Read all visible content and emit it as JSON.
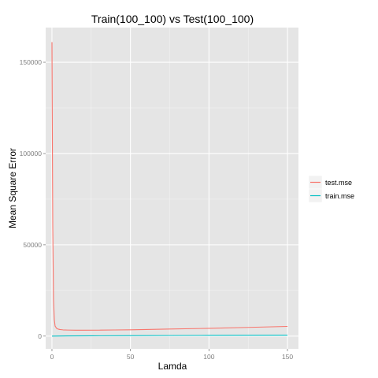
{
  "chart_data": {
    "type": "line",
    "title": "Train(100_100) vs Test(100_100)",
    "xlabel": "Lamda",
    "ylabel": "Mean Square Error",
    "xlim": [
      -4,
      157
    ],
    "ylim": [
      -7000,
      169000
    ],
    "x_ticks": [
      0,
      50,
      100,
      150
    ],
    "y_ticks": [
      0,
      50000,
      100000,
      150000
    ],
    "x_tick_labels": [
      "0",
      "50",
      "100",
      "150"
    ],
    "y_tick_labels": [
      "0",
      "50000",
      "100000",
      "150000"
    ],
    "grid": true,
    "legend_position": "right",
    "panel_background": "#e5e5e5",
    "grid_color": "#ffffff",
    "series": [
      {
        "name": "test.mse",
        "color": "#f8766d",
        "x": [
          0,
          0.5,
          1,
          1.5,
          2,
          3,
          4,
          5,
          7,
          10,
          15,
          20,
          30,
          40,
          50,
          60,
          75,
          100,
          125,
          150
        ],
        "y": [
          161000,
          60000,
          20000,
          9000,
          5500,
          4200,
          3800,
          3600,
          3400,
          3300,
          3200,
          3200,
          3250,
          3350,
          3450,
          3600,
          3850,
          4250,
          4750,
          5300
        ]
      },
      {
        "name": "train.mse",
        "color": "#00bfc4",
        "x": [
          0,
          10,
          25,
          50,
          75,
          100,
          125,
          150
        ],
        "y": [
          0,
          80,
          150,
          250,
          330,
          400,
          460,
          520
        ]
      }
    ]
  }
}
